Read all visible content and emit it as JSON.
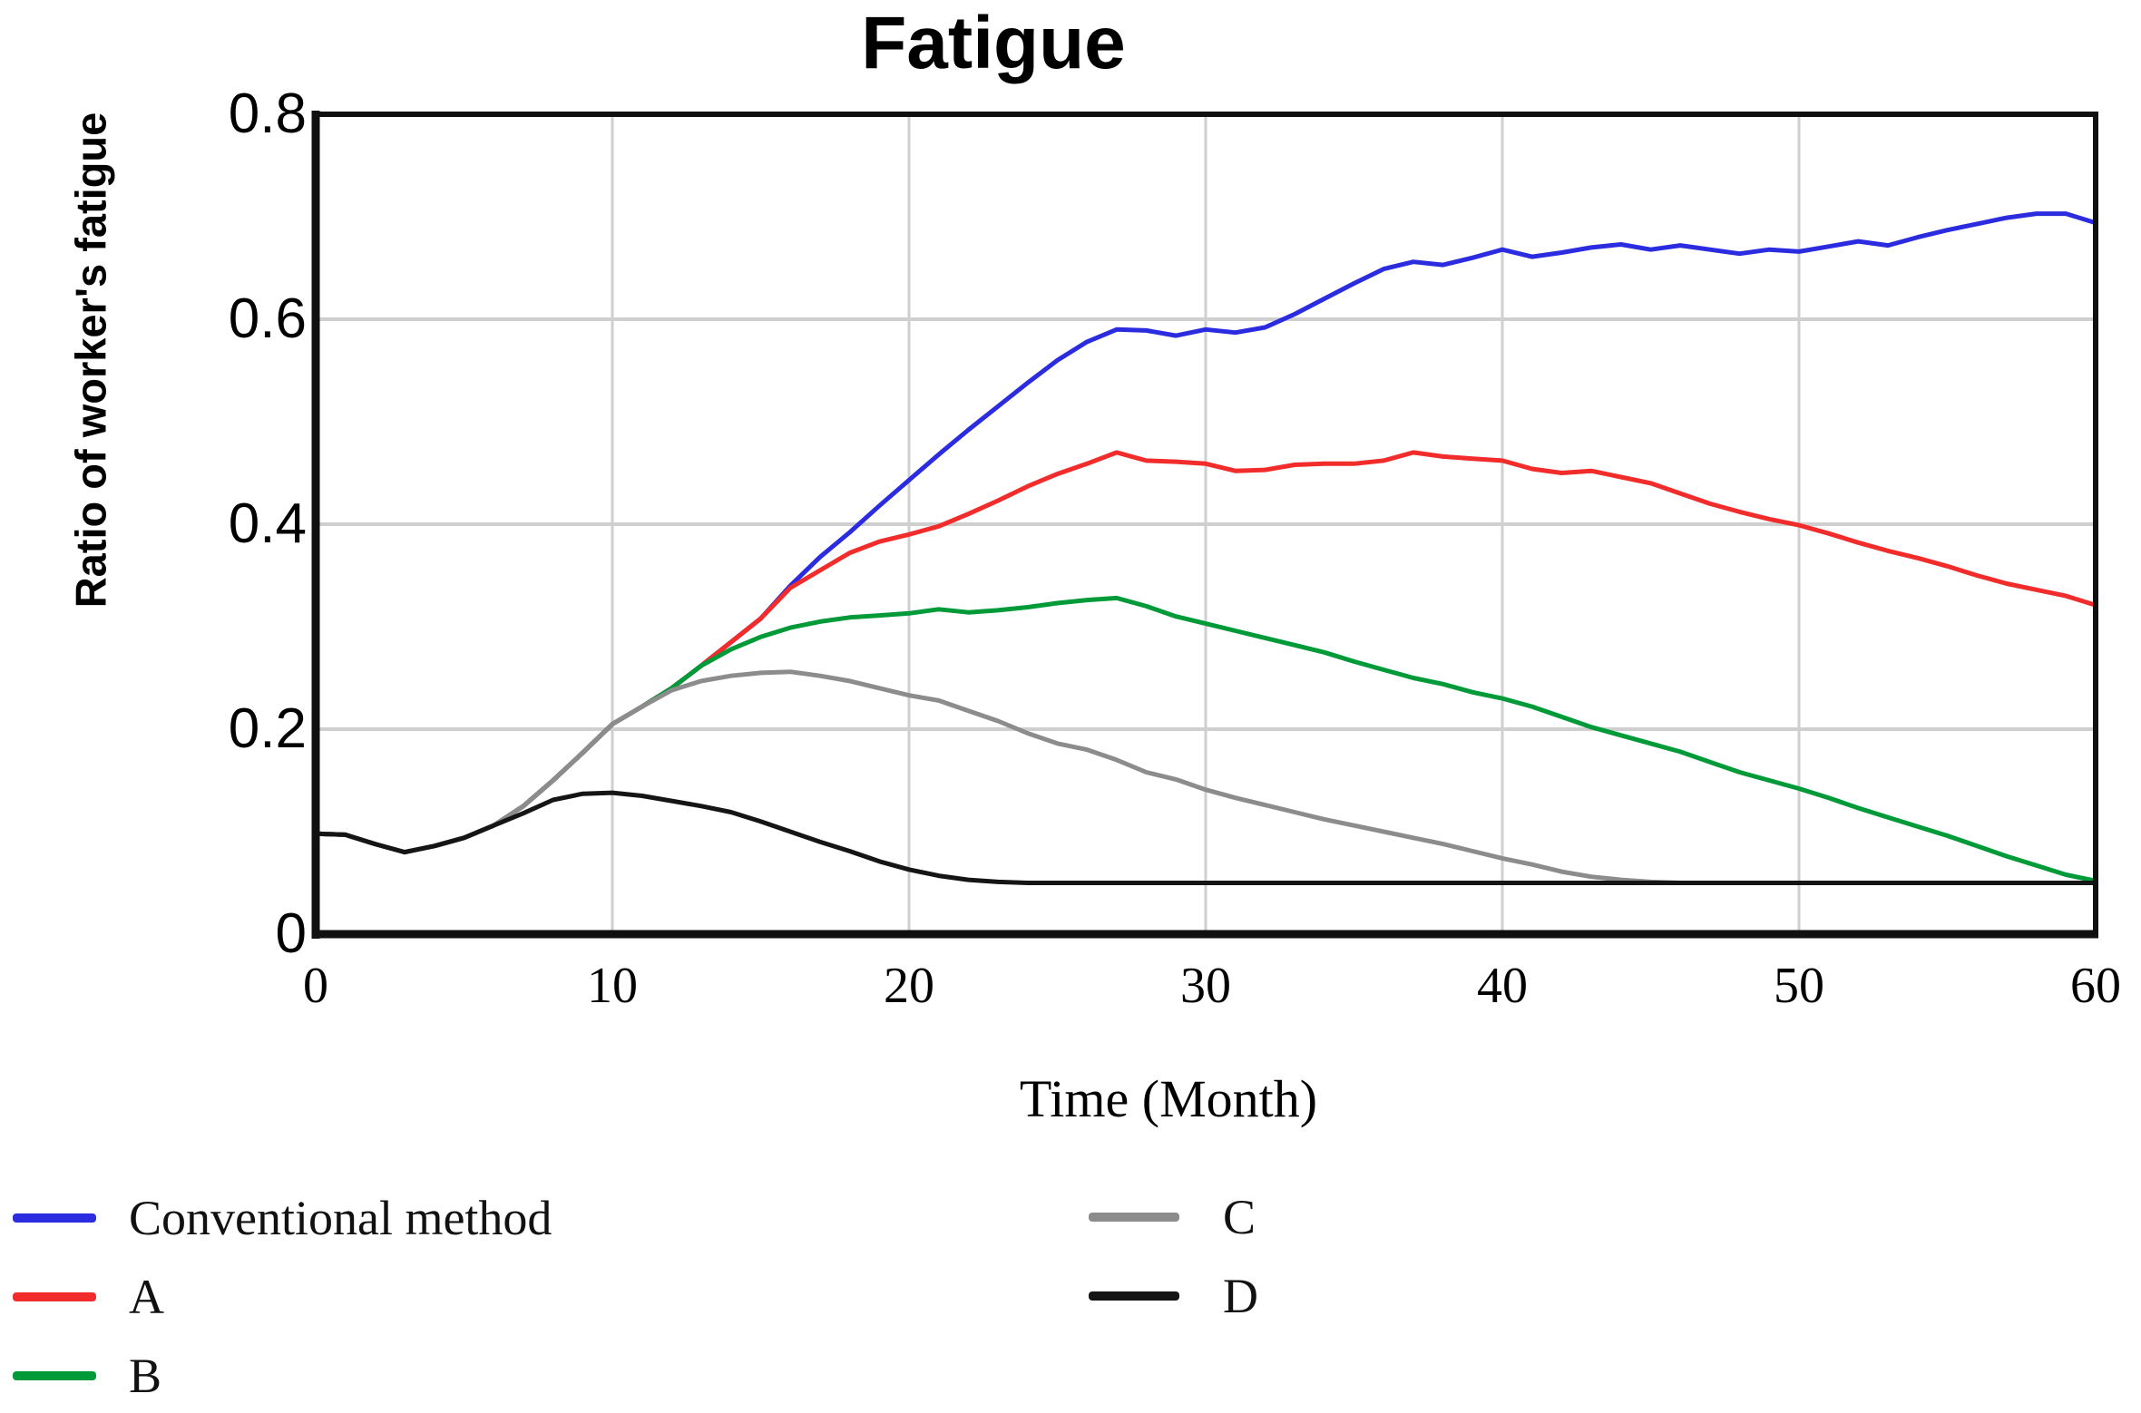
{
  "chart_data": {
    "type": "line",
    "title": "Fatigue",
    "xlabel": "Time (Month)",
    "ylabel": "Ratio of worker's fatigue",
    "xlim": [
      0,
      60
    ],
    "ylim": [
      0,
      0.8
    ],
    "x_unit_months": 1,
    "grid": true,
    "legend_position": "bottom-two-columns",
    "xtick_labels": [
      "0",
      "10",
      "20",
      "30",
      "40",
      "50",
      "60"
    ],
    "xtick_values": [
      0,
      10,
      20,
      30,
      40,
      50,
      60
    ],
    "ytick_labels": [
      "0.8",
      "0.6",
      "0.4",
      "0.2",
      "0"
    ],
    "ytick_values": [
      0.8,
      0.6,
      0.4,
      0.2,
      0
    ],
    "colors": {
      "gridline": "#cfcfcf",
      "frame": "#101010",
      "text": "#000000"
    },
    "series": [
      {
        "name": "Conventional method",
        "color": "#2b2be0",
        "values": [
          0.098,
          0.097,
          0.088,
          0.08,
          0.086,
          0.094,
          0.106,
          0.125,
          0.15,
          0.177,
          0.205,
          0.222,
          0.24,
          0.262,
          0.285,
          0.308,
          0.34,
          0.368,
          0.392,
          0.418,
          0.443,
          0.468,
          0.492,
          0.515,
          0.538,
          0.56,
          0.578,
          0.59,
          0.589,
          0.584,
          0.59,
          0.587,
          0.592,
          0.605,
          0.62,
          0.635,
          0.649,
          0.656,
          0.653,
          0.66,
          0.668,
          0.661,
          0.665,
          0.67,
          0.673,
          0.668,
          0.672,
          0.668,
          0.664,
          0.668,
          0.666,
          0.671,
          0.676,
          0.672,
          0.68,
          0.687,
          0.693,
          0.699,
          0.703,
          0.703,
          0.694
        ]
      },
      {
        "name": "A",
        "color": "#f22b2b",
        "values": [
          0.098,
          0.097,
          0.088,
          0.08,
          0.086,
          0.094,
          0.106,
          0.125,
          0.15,
          0.177,
          0.205,
          0.222,
          0.24,
          0.262,
          0.285,
          0.308,
          0.338,
          0.355,
          0.372,
          0.383,
          0.39,
          0.398,
          0.41,
          0.423,
          0.437,
          0.449,
          0.459,
          0.47,
          0.462,
          0.461,
          0.459,
          0.452,
          0.453,
          0.458,
          0.459,
          0.459,
          0.462,
          0.47,
          0.466,
          0.464,
          0.462,
          0.454,
          0.45,
          0.452,
          0.446,
          0.44,
          0.43,
          0.42,
          0.412,
          0.405,
          0.399,
          0.391,
          0.382,
          0.374,
          0.367,
          0.359,
          0.35,
          0.342,
          0.336,
          0.33,
          0.321
        ]
      },
      {
        "name": "B",
        "color": "#009a38",
        "values": [
          0.098,
          0.097,
          0.088,
          0.08,
          0.086,
          0.094,
          0.106,
          0.125,
          0.15,
          0.177,
          0.205,
          0.222,
          0.24,
          0.262,
          0.278,
          0.29,
          0.299,
          0.305,
          0.309,
          0.311,
          0.313,
          0.317,
          0.314,
          0.316,
          0.319,
          0.323,
          0.326,
          0.328,
          0.32,
          0.31,
          0.303,
          0.296,
          0.289,
          0.282,
          0.275,
          0.266,
          0.258,
          0.25,
          0.244,
          0.236,
          0.23,
          0.222,
          0.212,
          0.202,
          0.194,
          0.186,
          0.178,
          0.168,
          0.158,
          0.15,
          0.142,
          0.133,
          0.123,
          0.114,
          0.105,
          0.096,
          0.086,
          0.076,
          0.067,
          0.058,
          0.052
        ]
      },
      {
        "name": "C",
        "color": "#8c8c8c",
        "values": [
          0.098,
          0.097,
          0.088,
          0.08,
          0.086,
          0.094,
          0.106,
          0.125,
          0.15,
          0.177,
          0.205,
          0.222,
          0.238,
          0.247,
          0.252,
          0.255,
          0.256,
          0.252,
          0.247,
          0.24,
          0.233,
          0.228,
          0.218,
          0.208,
          0.196,
          0.186,
          0.18,
          0.17,
          0.158,
          0.151,
          0.141,
          0.133,
          0.126,
          0.119,
          0.112,
          0.106,
          0.1,
          0.094,
          0.088,
          0.081,
          0.074,
          0.068,
          0.061,
          0.056,
          0.053,
          0.051,
          0.05,
          0.05,
          0.05,
          0.05,
          0.05,
          0.05,
          0.05,
          0.05,
          0.05,
          0.05,
          0.05,
          0.05,
          0.05,
          0.05,
          0.05
        ]
      },
      {
        "name": "D",
        "color": "#151515",
        "values": [
          0.098,
          0.097,
          0.088,
          0.08,
          0.086,
          0.094,
          0.106,
          0.118,
          0.131,
          0.137,
          0.138,
          0.135,
          0.13,
          0.125,
          0.119,
          0.11,
          0.1,
          0.09,
          0.081,
          0.071,
          0.063,
          0.057,
          0.053,
          0.051,
          0.05,
          0.05,
          0.05,
          0.05,
          0.05,
          0.05,
          0.05,
          0.05,
          0.05,
          0.05,
          0.05,
          0.05,
          0.05,
          0.05,
          0.05,
          0.05,
          0.05,
          0.05,
          0.05,
          0.05,
          0.05,
          0.05,
          0.05,
          0.05,
          0.05,
          0.05,
          0.05,
          0.05,
          0.05,
          0.05,
          0.05,
          0.05,
          0.05,
          0.05,
          0.05,
          0.05,
          0.05
        ]
      }
    ]
  }
}
